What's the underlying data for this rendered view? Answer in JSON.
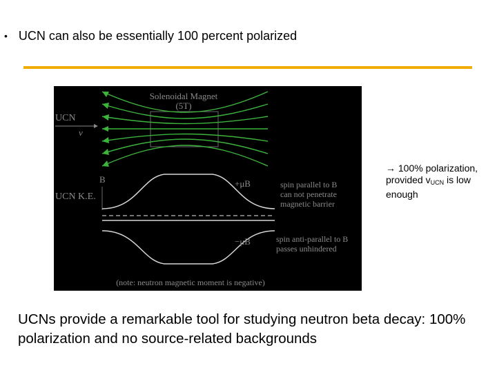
{
  "slide": {
    "bullet_marker": "•",
    "bullet_text": "UCN can also be essentially 100 percent polarized",
    "side_note": {
      "arrow": "→",
      "line1": "100% polarization, provided v",
      "subscript": "UCN",
      "line2": " is low enough"
    },
    "conclusion": "UCNs provide a remarkable tool for studying neutron beta decay: 100% polarization and no source-related backgrounds"
  },
  "figure": {
    "magnet_title_line1": "Solenoidal Magnet",
    "magnet_title_line2": "(5T)",
    "ucn_label": "UCN",
    "v_label": "v",
    "b_label": "B",
    "ke_label": "UCN  K.E.",
    "plus_mu_b": "+μB",
    "minus_mu_b": "−μB",
    "spin_parallel_line1": "spin parallel to B",
    "spin_parallel_line2": "can not penetrate",
    "spin_parallel_line3": "magnetic barrier",
    "spin_anti_line1": "spin anti-parallel to B",
    "spin_anti_line2": "passes unhindered",
    "note": "(note: neutron magnetic moment is negative)",
    "colors": {
      "background": "#000000",
      "field_lines": "#3cb43c",
      "curves": "#d8d8d8",
      "text": "#8a8a8a"
    }
  },
  "colors": {
    "accent_rule": "#f0ac00"
  }
}
